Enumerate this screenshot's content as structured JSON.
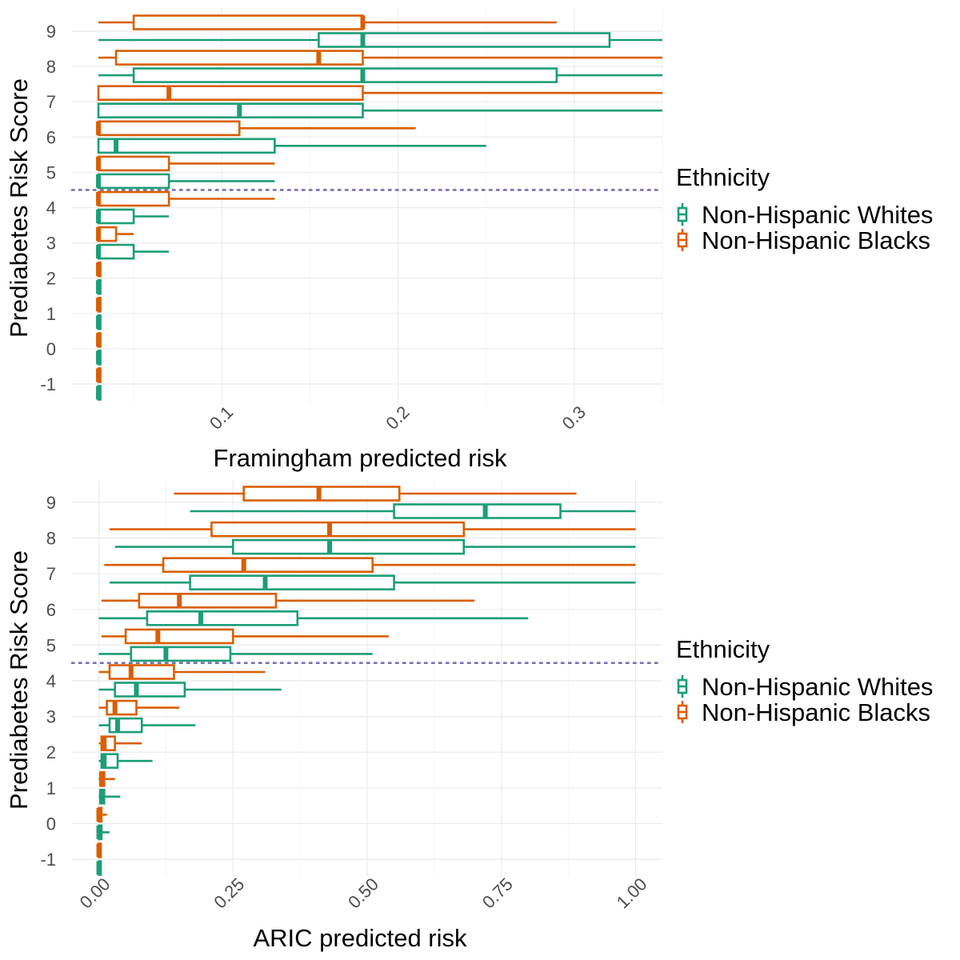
{
  "chart_data": [
    {
      "type": "boxplot",
      "orientation": "horizontal",
      "xlabel": "Framingham predicted risk",
      "ylabel": "Prediabetes Risk Score",
      "xlim": [
        0.015,
        0.35
      ],
      "x_ticks": [
        0.1,
        0.2,
        0.3
      ],
      "x_tick_labels": [
        "0.1",
        "0.2",
        "0.3"
      ],
      "y_categories": [
        "-1",
        "0",
        "1",
        "2",
        "3",
        "4",
        "5",
        "6",
        "7",
        "8",
        "9"
      ],
      "reference_line": {
        "y": 4.5,
        "style": "dotted",
        "color": "#7570b3"
      },
      "grid": true,
      "legend": {
        "title": "Ethnicity",
        "position": "right"
      },
      "series": [
        {
          "name": "Non-Hispanic Whites",
          "color": "#1b9e77",
          "boxes": [
            {
              "score": -1,
              "min": 0.03,
              "q1": 0.03,
              "median": 0.03,
              "q3": 0.03,
              "max": 0.03
            },
            {
              "score": 0,
              "min": 0.03,
              "q1": 0.03,
              "median": 0.03,
              "q3": 0.03,
              "max": 0.03
            },
            {
              "score": 1,
              "min": 0.03,
              "q1": 0.03,
              "median": 0.03,
              "q3": 0.03,
              "max": 0.03
            },
            {
              "score": 2,
              "min": 0.03,
              "q1": 0.03,
              "median": 0.03,
              "q3": 0.03,
              "max": 0.03
            },
            {
              "score": 3,
              "min": 0.03,
              "q1": 0.03,
              "median": 0.03,
              "q3": 0.05,
              "max": 0.07
            },
            {
              "score": 4,
              "min": 0.03,
              "q1": 0.03,
              "median": 0.03,
              "q3": 0.05,
              "max": 0.07
            },
            {
              "score": 5,
              "min": 0.03,
              "q1": 0.03,
              "median": 0.03,
              "q3": 0.07,
              "max": 0.13
            },
            {
              "score": 6,
              "min": 0.03,
              "q1": 0.03,
              "median": 0.04,
              "q3": 0.13,
              "max": 0.25
            },
            {
              "score": 7,
              "min": 0.03,
              "q1": 0.03,
              "median": 0.11,
              "q3": 0.18,
              "max": 0.35
            },
            {
              "score": 8,
              "min": 0.03,
              "q1": 0.05,
              "median": 0.18,
              "q3": 0.29,
              "max": 0.35
            },
            {
              "score": 9,
              "min": 0.03,
              "q1": 0.155,
              "median": 0.18,
              "q3": 0.32,
              "max": 0.35
            }
          ]
        },
        {
          "name": "Non-Hispanic Blacks",
          "color": "#d95f02",
          "boxes": [
            {
              "score": -1,
              "min": 0.03,
              "q1": 0.03,
              "median": 0.03,
              "q3": 0.03,
              "max": 0.03
            },
            {
              "score": 0,
              "min": 0.03,
              "q1": 0.03,
              "median": 0.03,
              "q3": 0.03,
              "max": 0.03
            },
            {
              "score": 1,
              "min": 0.03,
              "q1": 0.03,
              "median": 0.03,
              "q3": 0.03,
              "max": 0.03
            },
            {
              "score": 2,
              "min": 0.03,
              "q1": 0.03,
              "median": 0.03,
              "q3": 0.03,
              "max": 0.03
            },
            {
              "score": 3,
              "min": 0.03,
              "q1": 0.03,
              "median": 0.03,
              "q3": 0.04,
              "max": 0.05
            },
            {
              "score": 4,
              "min": 0.03,
              "q1": 0.03,
              "median": 0.03,
              "q3": 0.07,
              "max": 0.13
            },
            {
              "score": 5,
              "min": 0.03,
              "q1": 0.03,
              "median": 0.03,
              "q3": 0.07,
              "max": 0.13
            },
            {
              "score": 6,
              "min": 0.03,
              "q1": 0.03,
              "median": 0.03,
              "q3": 0.11,
              "max": 0.21
            },
            {
              "score": 7,
              "min": 0.03,
              "q1": 0.03,
              "median": 0.07,
              "q3": 0.18,
              "max": 0.35
            },
            {
              "score": 8,
              "min": 0.03,
              "q1": 0.04,
              "median": 0.155,
              "q3": 0.18,
              "max": 0.35
            },
            {
              "score": 9,
              "min": 0.03,
              "q1": 0.05,
              "median": 0.18,
              "q3": 0.18,
              "max": 0.29
            }
          ]
        }
      ]
    },
    {
      "type": "boxplot",
      "orientation": "horizontal",
      "xlabel": "ARIC predicted risk",
      "ylabel": "Prediabetes Risk Score",
      "xlim": [
        -0.05,
        1.05
      ],
      "x_ticks": [
        0.0,
        0.25,
        0.5,
        0.75,
        1.0
      ],
      "x_tick_labels": [
        "0.00",
        "0.25",
        "0.50",
        "0.75",
        "1.00"
      ],
      "y_categories": [
        "-1",
        "0",
        "1",
        "2",
        "3",
        "4",
        "5",
        "6",
        "7",
        "8",
        "9"
      ],
      "reference_line": {
        "y": 4.5,
        "style": "dotted",
        "color": "#7570b3"
      },
      "grid": true,
      "legend": {
        "title": "Ethnicity",
        "position": "right"
      },
      "series": [
        {
          "name": "Non-Hispanic Whites",
          "color": "#1b9e77",
          "boxes": [
            {
              "score": -1,
              "min": 0.0,
              "q1": 0.0,
              "median": 0.0,
              "q3": 0.0,
              "max": 0.0
            },
            {
              "score": 0,
              "min": 0.0,
              "q1": 0.0,
              "median": 0.0,
              "q3": 0.005,
              "max": 0.02
            },
            {
              "score": 1,
              "min": 0.0,
              "q1": 0.003,
              "median": 0.005,
              "q3": 0.01,
              "max": 0.04
            },
            {
              "score": 2,
              "min": 0.0,
              "q1": 0.005,
              "median": 0.01,
              "q3": 0.035,
              "max": 0.1
            },
            {
              "score": 3,
              "min": 0.0,
              "q1": 0.02,
              "median": 0.035,
              "q3": 0.08,
              "max": 0.18
            },
            {
              "score": 4,
              "min": 0.0,
              "q1": 0.03,
              "median": 0.07,
              "q3": 0.16,
              "max": 0.34
            },
            {
              "score": 5,
              "min": 0.0,
              "q1": 0.06,
              "median": 0.125,
              "q3": 0.245,
              "max": 0.51
            },
            {
              "score": 6,
              "min": 0.0,
              "q1": 0.09,
              "median": 0.19,
              "q3": 0.37,
              "max": 0.8
            },
            {
              "score": 7,
              "min": 0.02,
              "q1": 0.17,
              "median": 0.31,
              "q3": 0.55,
              "max": 1.0
            },
            {
              "score": 8,
              "min": 0.03,
              "q1": 0.25,
              "median": 0.43,
              "q3": 0.68,
              "max": 1.0
            },
            {
              "score": 9,
              "min": 0.17,
              "q1": 0.55,
              "median": 0.72,
              "q3": 0.86,
              "max": 1.0
            }
          ]
        },
        {
          "name": "Non-Hispanic Blacks",
          "color": "#d95f02",
          "boxes": [
            {
              "score": -1,
              "min": 0.0,
              "q1": 0.0,
              "median": 0.0,
              "q3": 0.0,
              "max": 0.0
            },
            {
              "score": 0,
              "min": 0.0,
              "q1": 0.0,
              "median": 0.0,
              "q3": 0.005,
              "max": 0.015
            },
            {
              "score": 1,
              "min": 0.0,
              "q1": 0.003,
              "median": 0.005,
              "q3": 0.01,
              "max": 0.03
            },
            {
              "score": 2,
              "min": 0.0,
              "q1": 0.005,
              "median": 0.01,
              "q3": 0.03,
              "max": 0.08
            },
            {
              "score": 3,
              "min": 0.0,
              "q1": 0.015,
              "median": 0.03,
              "q3": 0.07,
              "max": 0.15
            },
            {
              "score": 4,
              "min": 0.0,
              "q1": 0.02,
              "median": 0.06,
              "q3": 0.14,
              "max": 0.31
            },
            {
              "score": 5,
              "min": 0.005,
              "q1": 0.05,
              "median": 0.11,
              "q3": 0.25,
              "max": 0.54
            },
            {
              "score": 6,
              "min": 0.005,
              "q1": 0.075,
              "median": 0.15,
              "q3": 0.33,
              "max": 0.7
            },
            {
              "score": 7,
              "min": 0.01,
              "q1": 0.12,
              "median": 0.27,
              "q3": 0.51,
              "max": 1.0
            },
            {
              "score": 8,
              "min": 0.02,
              "q1": 0.21,
              "median": 0.43,
              "q3": 0.68,
              "max": 1.0
            },
            {
              "score": 9,
              "min": 0.14,
              "q1": 0.27,
              "median": 0.41,
              "q3": 0.56,
              "max": 0.89
            }
          ]
        }
      ]
    }
  ]
}
